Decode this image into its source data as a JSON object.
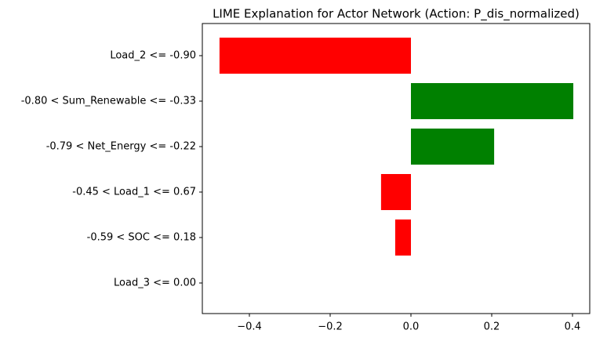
{
  "chart_data": {
    "type": "barh",
    "title": "LIME Explanation for Actor Network (Action: P_dis_normalized)",
    "categories": [
      "Load_2 <= -0.90",
      "-0.80 < Sum_Renewable <= -0.33",
      "-0.79 < Net_Energy <= -0.22",
      "-0.45 < Load_1 <= 0.67",
      "-0.59 < SOC <= 0.18",
      "Load_3 <= 0.00"
    ],
    "values": [
      -0.474,
      0.402,
      0.206,
      -0.074,
      -0.039,
      0.0
    ],
    "colors": [
      "#ff0000",
      "#008000",
      "#008000",
      "#ff0000",
      "#ff0000",
      "#ff0000"
    ],
    "xlim": [
      -0.5165,
      0.4427
    ],
    "xticks": [
      {
        "value": -0.4,
        "label": "−0.4"
      },
      {
        "value": -0.2,
        "label": "−0.2"
      },
      {
        "value": 0.0,
        "label": "0.0"
      },
      0.2,
      0.4
    ],
    "grid": false
  }
}
